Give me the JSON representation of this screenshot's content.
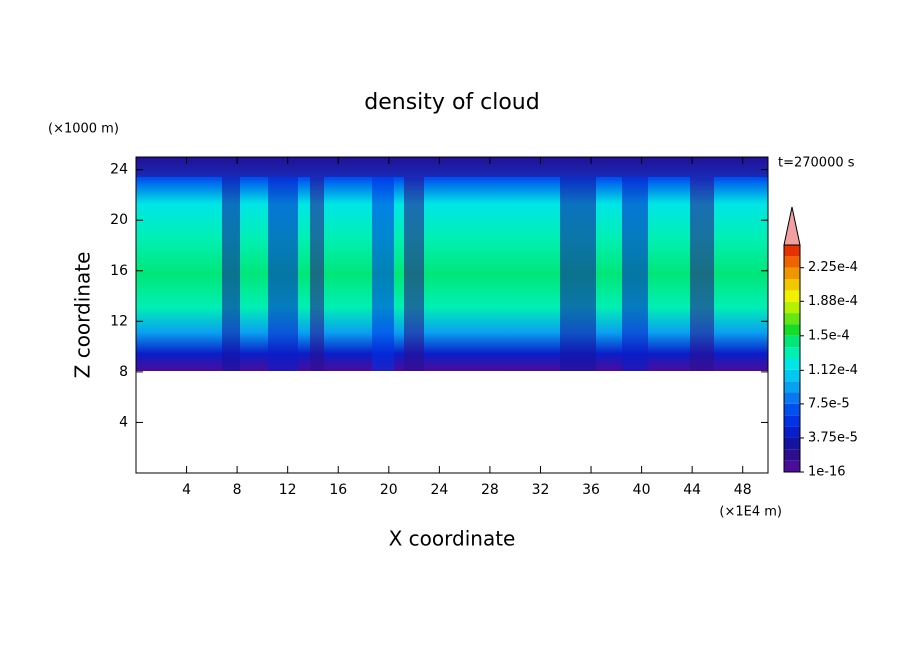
{
  "chart_data": {
    "type": "contour",
    "title": "density of cloud",
    "x_label": "X coordinate",
    "y_label": "Z coordinate",
    "x_unit": "(×1E4 m)",
    "y_unit": "(×1000 m)",
    "annotation": "t=270000 s",
    "xlim": [
      0,
      50
    ],
    "xticks": [
      4,
      8,
      12,
      16,
      20,
      24,
      28,
      32,
      36,
      40,
      44,
      48
    ],
    "ylim": [
      0,
      25
    ],
    "yticks": [
      4,
      8,
      12,
      16,
      20,
      24
    ],
    "levels": [
      1e-16,
      1.25e-05,
      2.5e-05,
      3.75e-05,
      5e-05,
      6.25e-05,
      7.5e-05,
      8.75e-05,
      0.0001,
      0.0001125,
      0.000125,
      0.0001375,
      0.00015,
      0.0001625,
      0.000175,
      0.0001875,
      0.0002,
      0.0002125,
      0.000225,
      0.0002375,
      0.00025
    ],
    "colors": [
      "#4b0c9a",
      "#2d0e8c",
      "#1414a0",
      "#0a1ec8",
      "#0032e6",
      "#0050f0",
      "#0a78f0",
      "#0aa0f0",
      "#00c8f0",
      "#00e6e6",
      "#00f0b4",
      "#00e678",
      "#14dc28",
      "#64e614",
      "#b4f000",
      "#f0f000",
      "#f0c800",
      "#f09600",
      "#f06400",
      "#e63200"
    ],
    "extend_color": "#f0a0a0",
    "colorbar_ticks": [
      {
        "value": 1e-16,
        "label": "1e-16"
      },
      {
        "value": 3.75e-05,
        "label": "3.75e-5"
      },
      {
        "value": 7.5e-05,
        "label": "7.5e-5"
      },
      {
        "value": 0.000112,
        "label": "1.12e-4"
      },
      {
        "value": 0.00015,
        "label": "1.5e-4"
      },
      {
        "value": 0.000188,
        "label": "1.88e-4"
      },
      {
        "value": 0.000225,
        "label": "2.25e-4"
      }
    ]
  }
}
